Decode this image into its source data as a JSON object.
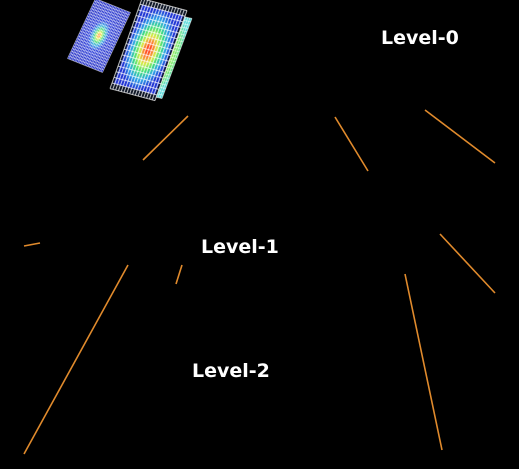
{
  "levels": [
    {
      "label": "Level-0"
    },
    {
      "label": "Level-1"
    },
    {
      "label": "Level-2"
    }
  ],
  "colors": {
    "background": "#000000",
    "connector": "#e08a2c",
    "grid": "#ffffff",
    "heat_low": "#1a2bd6",
    "heat_mid": "#33e36a",
    "heat_high": "#ff2a1a",
    "level2_base": "#8fe25a"
  }
}
